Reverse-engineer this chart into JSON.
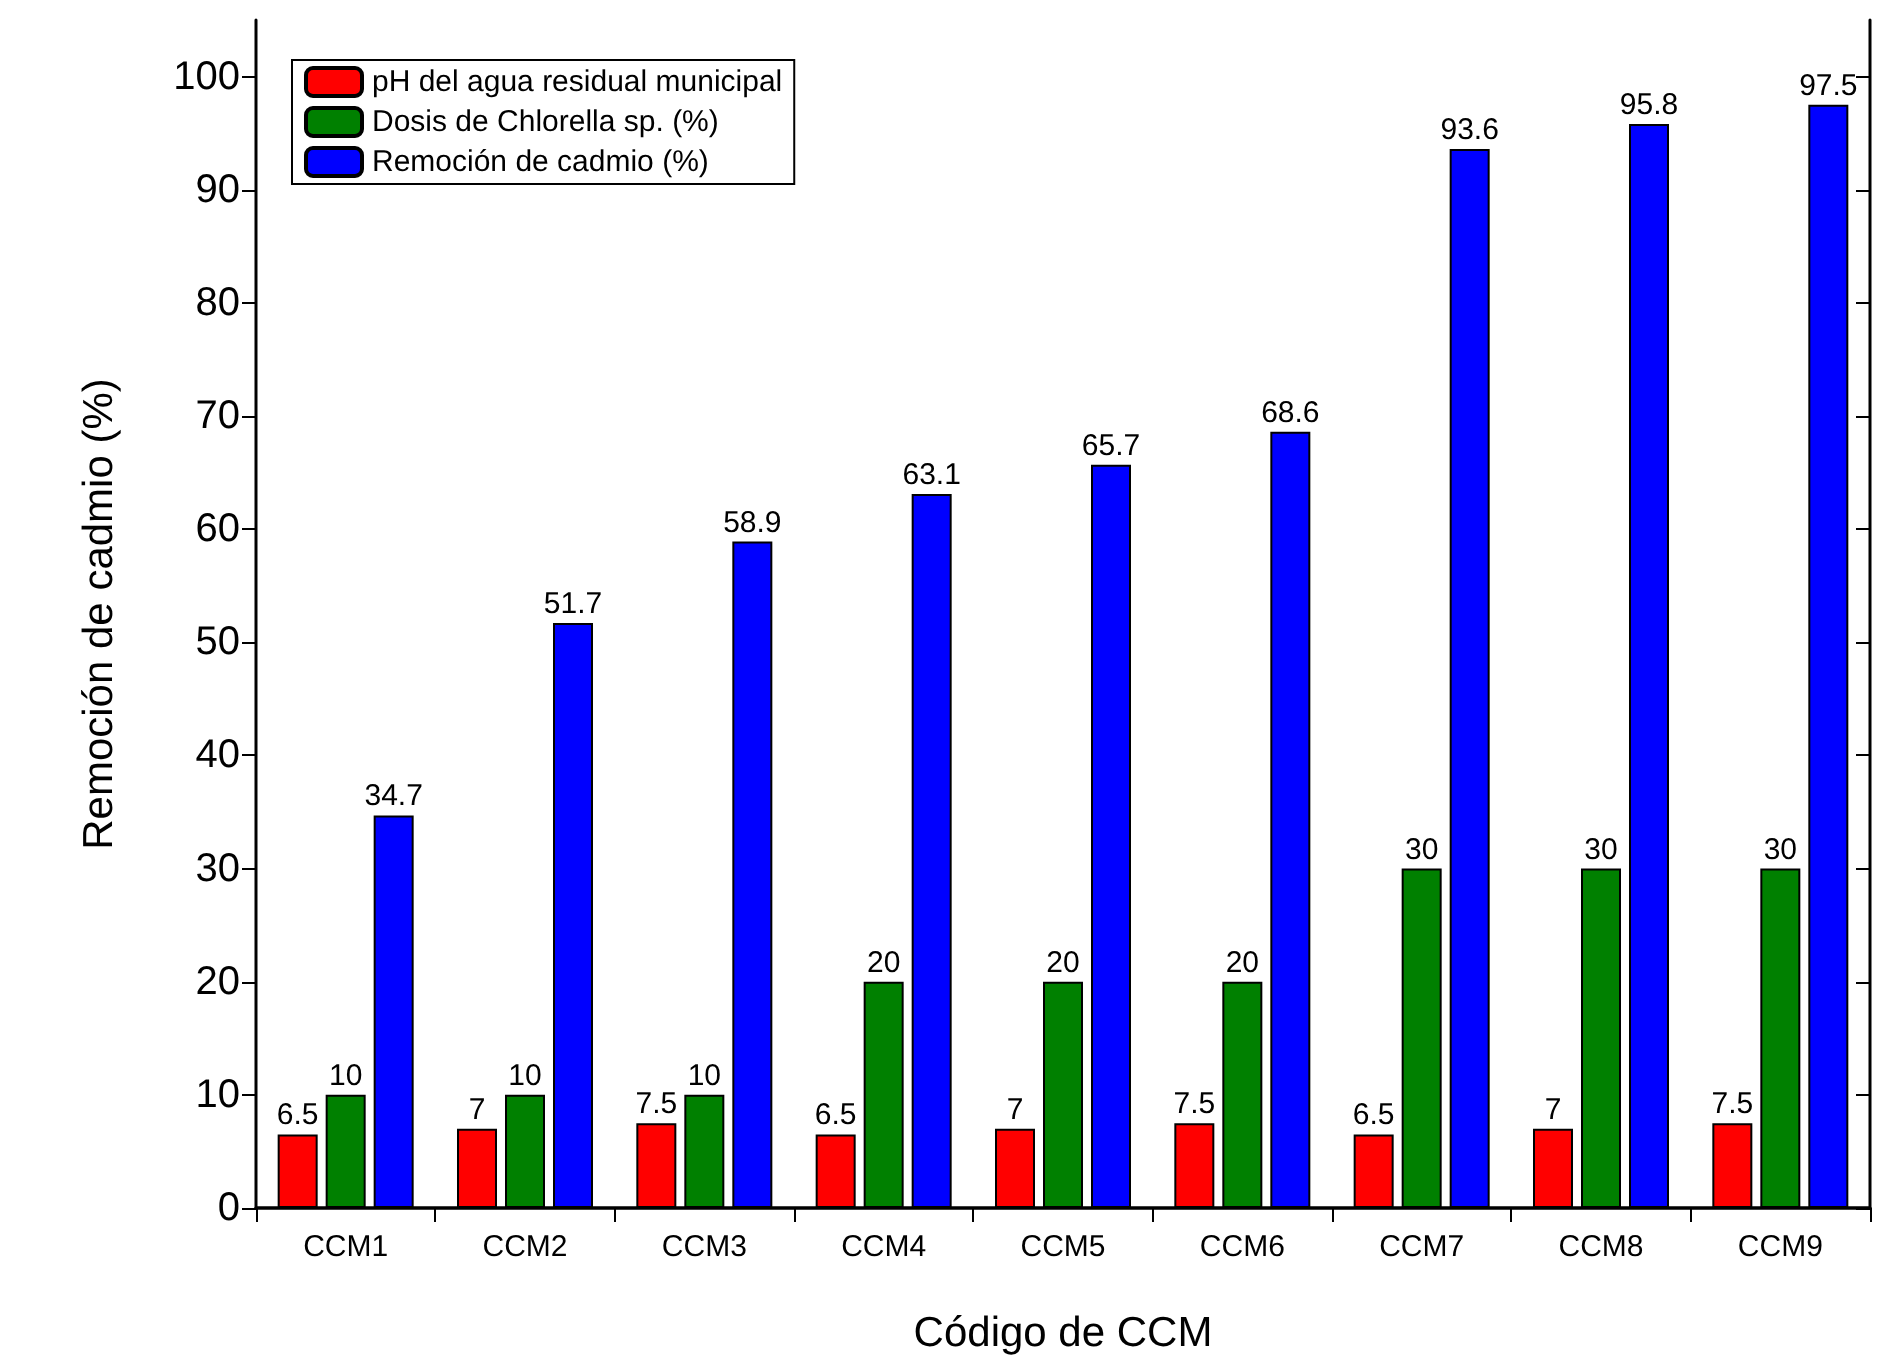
{
  "chart_data": {
    "type": "bar",
    "xlabel": "Código de CCM",
    "ylabel": "Remoción de cadmio (%)",
    "categories": [
      "CCM1",
      "CCM2",
      "CCM3",
      "CCM4",
      "CCM5",
      "CCM6",
      "CCM7",
      "CCM8",
      "CCM9"
    ],
    "series": [
      {
        "name": "pH del agua residual municipal",
        "color": "#ff0000",
        "values": [
          6.5,
          7,
          7.5,
          6.5,
          7,
          7.5,
          6.5,
          7,
          7.5
        ]
      },
      {
        "name": "Dosis de Chlorella sp. (%)",
        "color": "#008000",
        "values": [
          10,
          10,
          10,
          20,
          20,
          20,
          30,
          30,
          30
        ]
      },
      {
        "name": "Remoción de cadmio (%)",
        "color": "#0000ff",
        "values": [
          34.7,
          51.7,
          58.9,
          63.1,
          65.7,
          68.6,
          93.6,
          95.8,
          97.5
        ]
      }
    ],
    "ylim": [
      0,
      105
    ],
    "yticks": [
      0,
      10,
      20,
      30,
      40,
      50,
      60,
      70,
      80,
      90,
      100
    ],
    "data_labels": true,
    "grid": false,
    "legend": "top left"
  }
}
